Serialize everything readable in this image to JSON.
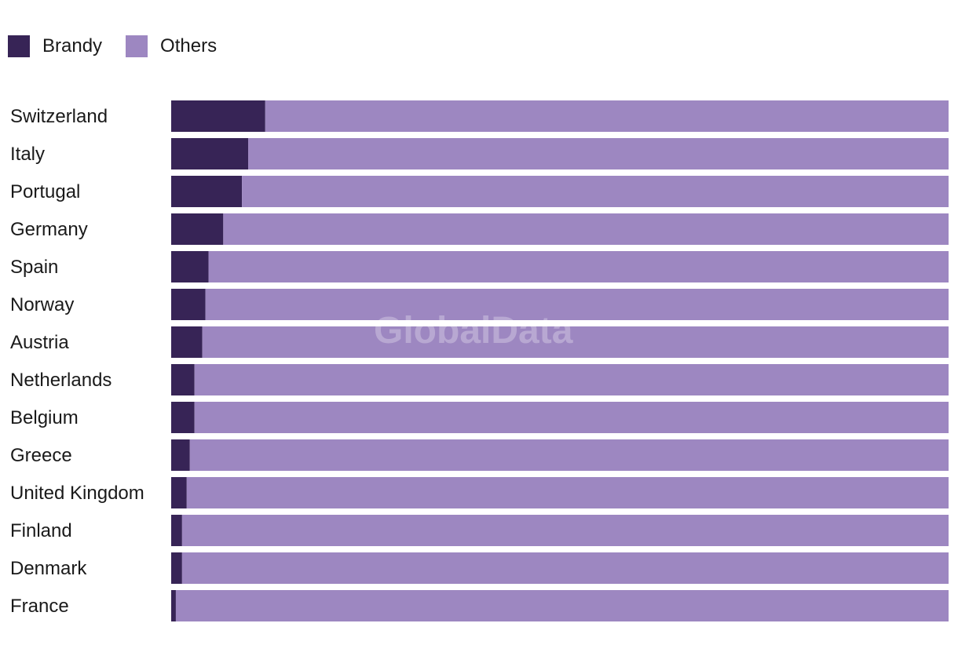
{
  "chart_data": {
    "type": "bar",
    "orientation": "horizontal",
    "stacked": true,
    "title": "",
    "xlabel": "",
    "ylabel": "",
    "xlim": [
      0,
      100
    ],
    "unit": "%",
    "grid": false,
    "legend_position": "top-left",
    "categories": [
      "Switzerland",
      "Italy",
      "Portugal",
      "Germany",
      "Spain",
      "Norway",
      "Austria",
      "Netherlands",
      "Belgium",
      "Greece",
      "United Kingdom",
      "Finland",
      "Denmark",
      "France"
    ],
    "series": [
      {
        "name": "Brandy",
        "color": "#372456",
        "values": [
          12.1,
          9.9,
          9.1,
          6.7,
          4.8,
          4.4,
          4.0,
          3.0,
          3.0,
          2.4,
          2.0,
          1.4,
          1.4,
          0.6
        ]
      },
      {
        "name": "Others",
        "color": "#9d87c1",
        "values": [
          87.9,
          90.1,
          90.9,
          93.3,
          95.2,
          95.6,
          96.0,
          97.0,
          97.0,
          97.6,
          98.0,
          98.6,
          98.6,
          99.4
        ]
      }
    ]
  },
  "watermark": "GlobalData"
}
